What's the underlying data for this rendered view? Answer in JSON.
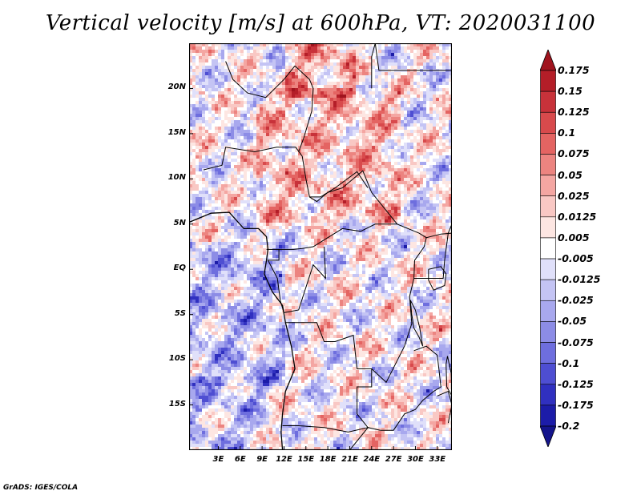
{
  "title": "Vertical velocity [m/s] at 600hPa, VT: 2020031100",
  "map": {
    "lon_range": [
      -1,
      35
    ],
    "lat_range": [
      -20,
      25
    ],
    "lat_ticks": [
      {
        "value": 20,
        "label": "20N"
      },
      {
        "value": 15,
        "label": "15N"
      },
      {
        "value": 10,
        "label": "10N"
      },
      {
        "value": 5,
        "label": "5N"
      },
      {
        "value": 0,
        "label": "EQ"
      },
      {
        "value": -5,
        "label": "5S"
      },
      {
        "value": -10,
        "label": "10S"
      },
      {
        "value": -15,
        "label": "15S"
      }
    ],
    "lon_ticks": [
      {
        "value": 3,
        "label": "3E"
      },
      {
        "value": 6,
        "label": "6E"
      },
      {
        "value": 9,
        "label": "9E"
      },
      {
        "value": 12,
        "label": "12E"
      },
      {
        "value": 15,
        "label": "15E"
      },
      {
        "value": 18,
        "label": "18E"
      },
      {
        "value": 21,
        "label": "21E"
      },
      {
        "value": 24,
        "label": "24E"
      },
      {
        "value": 27,
        "label": "27E"
      },
      {
        "value": 30,
        "label": "30E"
      },
      {
        "value": 33,
        "label": "33E"
      }
    ]
  },
  "colorbar": {
    "levels": [
      "0.175",
      "0.15",
      "0.125",
      "0.1",
      "0.075",
      "0.05",
      "0.025",
      "0.0125",
      "0.005",
      "-0.005",
      "-0.0125",
      "-0.025",
      "-0.05",
      "-0.075",
      "-0.1",
      "-0.125",
      "-0.175",
      "-0.2"
    ],
    "colors": [
      "#a0141e",
      "#b41e28",
      "#c8323a",
      "#d84a4c",
      "#e46462",
      "#ec8480",
      "#f4a6a2",
      "#f9c8c4",
      "#fde6e2",
      "#ffffff",
      "#e0e0fa",
      "#c4c4f4",
      "#a8a8ee",
      "#8c8ce6",
      "#6e6ede",
      "#4e4ed2",
      "#3030c0",
      "#1c1ca8",
      "#14148c"
    ]
  },
  "credit": "GrADS: IGES/COLA"
}
